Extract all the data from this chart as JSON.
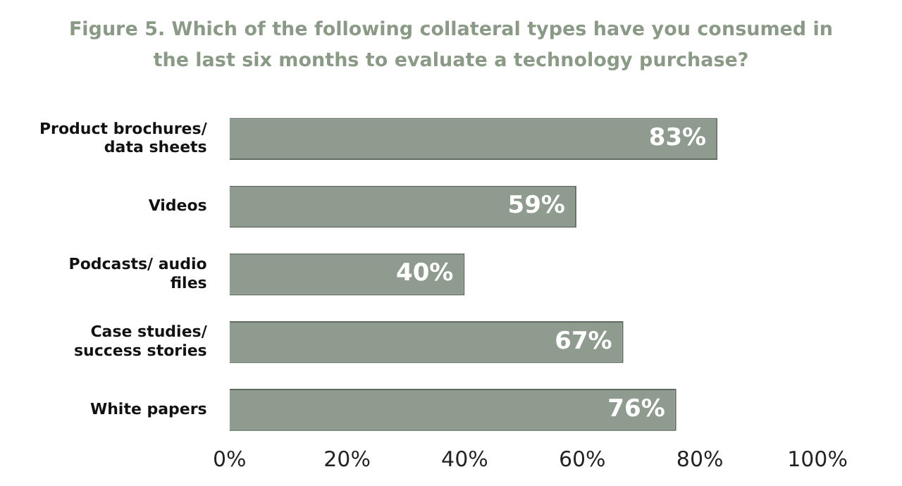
{
  "chart_data": {
    "type": "bar",
    "orientation": "horizontal",
    "title": "Figure 5. Which of the following collateral types have you consumed in the last six months to evaluate a technology purchase?",
    "categories": [
      "Product brochures/ data sheets",
      "Videos",
      "Podcasts/ audio files",
      "Case studies/ success stories",
      "White papers"
    ],
    "values": [
      83,
      59,
      40,
      67,
      76
    ],
    "value_labels": [
      "83%",
      "59%",
      "40%",
      "67%",
      "76%"
    ],
    "color": "#8e9b8e",
    "xlim": [
      0,
      100
    ],
    "xticks": [
      {
        "value": 0,
        "label": "0%"
      },
      {
        "value": 20,
        "label": "20%"
      },
      {
        "value": 40,
        "label": "40%"
      },
      {
        "value": 60,
        "label": "60%"
      },
      {
        "value": 80,
        "label": "80%"
      },
      {
        "value": 100,
        "label": "100%"
      }
    ],
    "grid": false,
    "legend": false
  }
}
